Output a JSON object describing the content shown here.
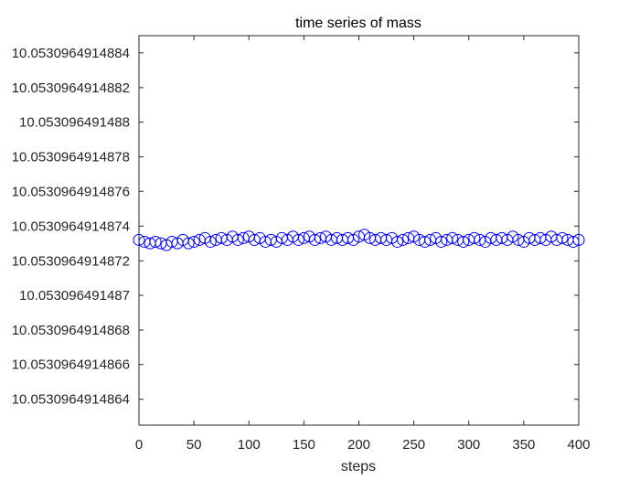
{
  "chart_data": {
    "type": "scatter",
    "title": "time series of mass",
    "xlabel": "steps",
    "ylabel": "",
    "xlim": [
      0,
      400
    ],
    "ylim": [
      10.05309649148625,
      10.0530964914885
    ],
    "grid": false,
    "legend": "none",
    "marker": "circle-open",
    "series_color": "#0000ff",
    "axis_color": "#262626",
    "x_ticks": [
      0,
      50,
      100,
      150,
      200,
      250,
      300,
      350,
      400
    ],
    "x_tick_labels": [
      "0",
      "50",
      "100",
      "150",
      "200",
      "250",
      "300",
      "350",
      "400"
    ],
    "y_ticks": [
      10.0530964914864,
      10.0530964914866,
      10.0530964914868,
      10.053096491487,
      10.0530964914872,
      10.0530964914874,
      10.0530964914876,
      10.0530964914878,
      10.053096491488,
      10.0530964914882,
      10.0530964914884
    ],
    "y_tick_labels": [
      "10.0530964914864",
      "10.0530964914866",
      "10.0530964914868",
      "10.053096491487",
      "10.0530964914872",
      "10.0530964914874",
      "10.0530964914876",
      "10.0530964914878",
      "10.053096491488",
      "10.0530964914882",
      "10.0530964914884"
    ],
    "series": [
      {
        "x": [
          0,
          5,
          10,
          15,
          20,
          25,
          30,
          35,
          40,
          45,
          50,
          55,
          60,
          65,
          70,
          75,
          80,
          85,
          90,
          95,
          100,
          105,
          110,
          115,
          120,
          125,
          130,
          135,
          140,
          145,
          150,
          155,
          160,
          165,
          170,
          175,
          180,
          185,
          190,
          195,
          200,
          205,
          210,
          215,
          220,
          225,
          230,
          235,
          240,
          245,
          250,
          255,
          260,
          265,
          270,
          275,
          280,
          285,
          290,
          295,
          300,
          305,
          310,
          315,
          320,
          325,
          330,
          335,
          340,
          345,
          350,
          355,
          360,
          365,
          370,
          375,
          380,
          385,
          390,
          395,
          400
        ],
        "y": [
          10.05309649148732,
          10.05309649148731,
          10.0530964914873,
          10.05309649148731,
          10.0530964914873,
          10.05309649148729,
          10.05309649148731,
          10.0530964914873,
          10.05309649148732,
          10.0530964914873,
          10.05309649148731,
          10.05309649148732,
          10.05309649148733,
          10.05309649148731,
          10.05309649148732,
          10.05309649148733,
          10.05309649148732,
          10.05309649148734,
          10.05309649148732,
          10.05309649148733,
          10.05309649148734,
          10.05309649148732,
          10.05309649148733,
          10.05309649148731,
          10.05309649148732,
          10.05309649148731,
          10.05309649148733,
          10.05309649148732,
          10.05309649148734,
          10.05309649148732,
          10.05309649148733,
          10.05309649148734,
          10.05309649148732,
          10.05309649148733,
          10.05309649148734,
          10.05309649148732,
          10.05309649148733,
          10.05309649148732,
          10.05309649148733,
          10.05309649148732,
          10.05309649148734,
          10.05309649148735,
          10.05309649148733,
          10.05309649148732,
          10.05309649148733,
          10.05309649148732,
          10.05309649148733,
          10.05309649148731,
          10.05309649148732,
          10.05309649148733,
          10.05309649148734,
          10.05309649148732,
          10.05309649148731,
          10.05309649148732,
          10.05309649148733,
          10.05309649148731,
          10.05309649148732,
          10.05309649148733,
          10.05309649148732,
          10.05309649148731,
          10.05309649148732,
          10.05309649148733,
          10.05309649148732,
          10.05309649148731,
          10.05309649148733,
          10.05309649148732,
          10.05309649148733,
          10.05309649148732,
          10.05309649148734,
          10.05309649148732,
          10.05309649148731,
          10.05309649148733,
          10.05309649148732,
          10.05309649148733,
          10.05309649148732,
          10.05309649148734,
          10.05309649148732,
          10.05309649148733,
          10.05309649148732,
          10.05309649148731,
          10.05309649148732
        ]
      }
    ]
  }
}
